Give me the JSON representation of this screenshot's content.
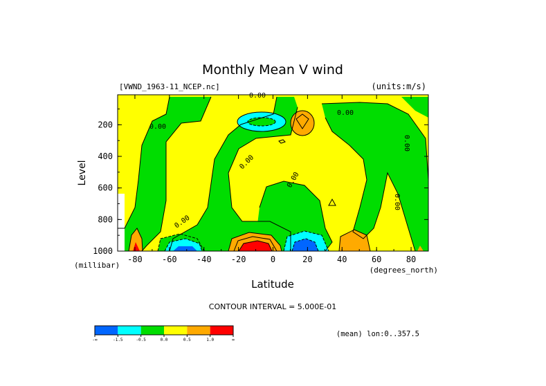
{
  "chart_data": {
    "type": "heatmap",
    "title": "Monthly Mean V wind",
    "dataset_label": "[VWND_1963-11_NCEP.nc]",
    "units_label": "(units:m/s)",
    "ylabel": "Level",
    "y_units": "(millibar)",
    "xlabel": "Latitude",
    "x_units": "(degrees_north)",
    "x_ticks": [
      -80,
      -60,
      -40,
      -20,
      0,
      20,
      40,
      60,
      80
    ],
    "y_ticks": [
      200,
      400,
      600,
      800,
      1000
    ],
    "xlim": [
      -90,
      90
    ],
    "ylim": [
      1000,
      10
    ],
    "contour_interval_label": "CONTOUR INTERVAL = 5.000E-01",
    "average_label": "(mean) lon:0..357.5",
    "contour_label": "0.00",
    "colorbar": {
      "levels": [
        "-∞",
        "-1.5",
        "-0.5",
        "0.0",
        "0.5",
        "1.0",
        "∞"
      ],
      "colors": [
        "#0066ff",
        "#00ffff",
        "#00dd00",
        "#ffff00",
        "#ffaa00",
        "#ff0000"
      ]
    },
    "regions": [
      {
        "name": "strong-north-low-level",
        "sign": "positive",
        "lat": [
          -20,
          0
        ],
        "level": [
          880,
          1000
        ],
        "value": 1.5
      },
      {
        "name": "north-ring-low-level",
        "sign": "positive",
        "lat": [
          -28,
          4
        ],
        "level": [
          830,
          1000
        ],
        "value": 0.8
      },
      {
        "name": "south-flow-low-level-20N",
        "sign": "negative",
        "lat": [
          6,
          30
        ],
        "level": [
          880,
          1000
        ],
        "value": -1.3
      },
      {
        "name": "south-flow-low-level-60S",
        "sign": "negative",
        "lat": [
          -72,
          -44
        ],
        "level": [
          900,
          1000
        ],
        "value": -1.0
      },
      {
        "name": "upper-south-20S",
        "sign": "negative",
        "lat": [
          -20,
          0
        ],
        "level": [
          120,
          230
        ],
        "value": -1.0
      },
      {
        "name": "upper-north-15N",
        "sign": "positive",
        "lat": [
          10,
          24
        ],
        "level": [
          100,
          250
        ],
        "value": 0.7
      },
      {
        "name": "north-flow-low-level-50N",
        "sign": "positive",
        "lat": [
          36,
          56
        ],
        "level": [
          850,
          1000
        ],
        "value": 0.6
      }
    ]
  }
}
